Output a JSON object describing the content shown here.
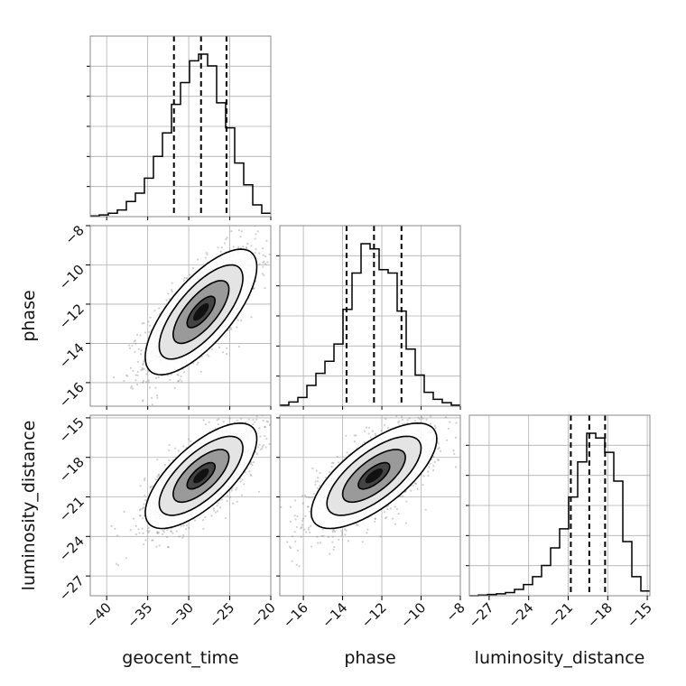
{
  "chart_data": {
    "type": "corner",
    "parameters": [
      "geocent_time",
      "phase",
      "luminosity_distance"
    ],
    "axis_labels": {
      "geocent_time": "geocent_time",
      "phase": "phase",
      "luminosity_distance": "luminosity_distance"
    },
    "ranges": {
      "geocent_time": [
        -42,
        -20
      ],
      "phase": [
        -17.2,
        -8
      ],
      "luminosity_distance": [
        -28.5,
        -14.8
      ]
    },
    "ticks": {
      "geocent_time": [
        -40,
        -35,
        -30,
        -25,
        -20
      ],
      "phase": [
        -16,
        -14,
        -12,
        -10,
        -8
      ],
      "luminosity_distance": [
        -27,
        -24,
        -21,
        -18,
        -15
      ]
    },
    "tick_labels": {
      "geocent_time": [
        "−40",
        "−35",
        "−30",
        "−25",
        "−20"
      ],
      "phase": [
        "−16",
        "−14",
        "−12",
        "−10",
        "−8"
      ],
      "luminosity_distance": [
        "−27",
        "−24",
        "−21",
        "−18",
        "−15"
      ]
    },
    "y_tick_labels": {
      "phase": [
        "−8",
        "−10",
        "−12",
        "−14",
        "−16"
      ],
      "luminosity_distance": [
        "−15",
        "−18",
        "−21",
        "−24",
        "−27"
      ]
    },
    "quantiles": {
      "geocent_time": [
        -31.8,
        -28.5,
        -25.4
      ],
      "phase": [
        -13.8,
        -12.4,
        -11.0
      ],
      "luminosity_distance": [
        -20.8,
        -19.4,
        -18.2
      ]
    },
    "histograms": {
      "geocent_time": {
        "bins": [
          -42,
          -40.9,
          -39.8,
          -38.7,
          -37.6,
          -36.5,
          -35.4,
          -34.3,
          -33.2,
          -32.1,
          -31.0,
          -29.9,
          -28.8,
          -27.7,
          -26.6,
          -25.5,
          -24.4,
          -23.3,
          -22.2,
          -21.1,
          -20
        ],
        "counts": [
          2,
          5,
          10,
          20,
          45,
          70,
          115,
          180,
          250,
          335,
          400,
          465,
          485,
          450,
          340,
          265,
          160,
          95,
          35,
          10
        ]
      },
      "phase": {
        "bins": [
          -17.2,
          -16.74,
          -16.28,
          -15.82,
          -15.36,
          -14.9,
          -14.44,
          -13.98,
          -13.52,
          -13.06,
          -12.6,
          -12.14,
          -11.68,
          -11.22,
          -10.76,
          -10.3,
          -9.84,
          -9.38,
          -8.92,
          -8.46,
          -8.0
        ],
        "counts": [
          3,
          12,
          25,
          60,
          95,
          130,
          180,
          280,
          385,
          470,
          455,
          395,
          385,
          275,
          165,
          90,
          40,
          20,
          10,
          3
        ]
      },
      "luminosity_distance": {
        "bins": [
          -28.5,
          -27.815,
          -27.13,
          -26.445,
          -25.76,
          -25.075,
          -24.39,
          -23.705,
          -23.02,
          -22.335,
          -21.65,
          -20.965,
          -20.28,
          -19.595,
          -18.91,
          -18.225,
          -17.54,
          -16.855,
          -16.17,
          -15.485,
          -14.8
        ],
        "counts": [
          0,
          2,
          4,
          6,
          10,
          20,
          35,
          60,
          95,
          150,
          210,
          310,
          420,
          510,
          495,
          450,
          360,
          170,
          60,
          15
        ]
      }
    },
    "joint": [
      {
        "x": "geocent_time",
        "y": "phase",
        "mean": [
          -28.5,
          -12.4
        ],
        "std": [
          3.4,
          1.6
        ],
        "corr": 0.72
      },
      {
        "x": "geocent_time",
        "y": "luminosity_distance",
        "mean": [
          -28.5,
          -19.4
        ],
        "std": [
          3.4,
          2.0
        ],
        "corr": 0.7
      },
      {
        "x": "phase",
        "y": "luminosity_distance",
        "mean": [
          -12.4,
          -19.4
        ],
        "std": [
          1.6,
          2.0
        ],
        "corr": 0.7
      }
    ],
    "contour_levels_sigma": [
      0.5,
      1.0,
      1.5,
      2.0
    ],
    "grid": true
  }
}
